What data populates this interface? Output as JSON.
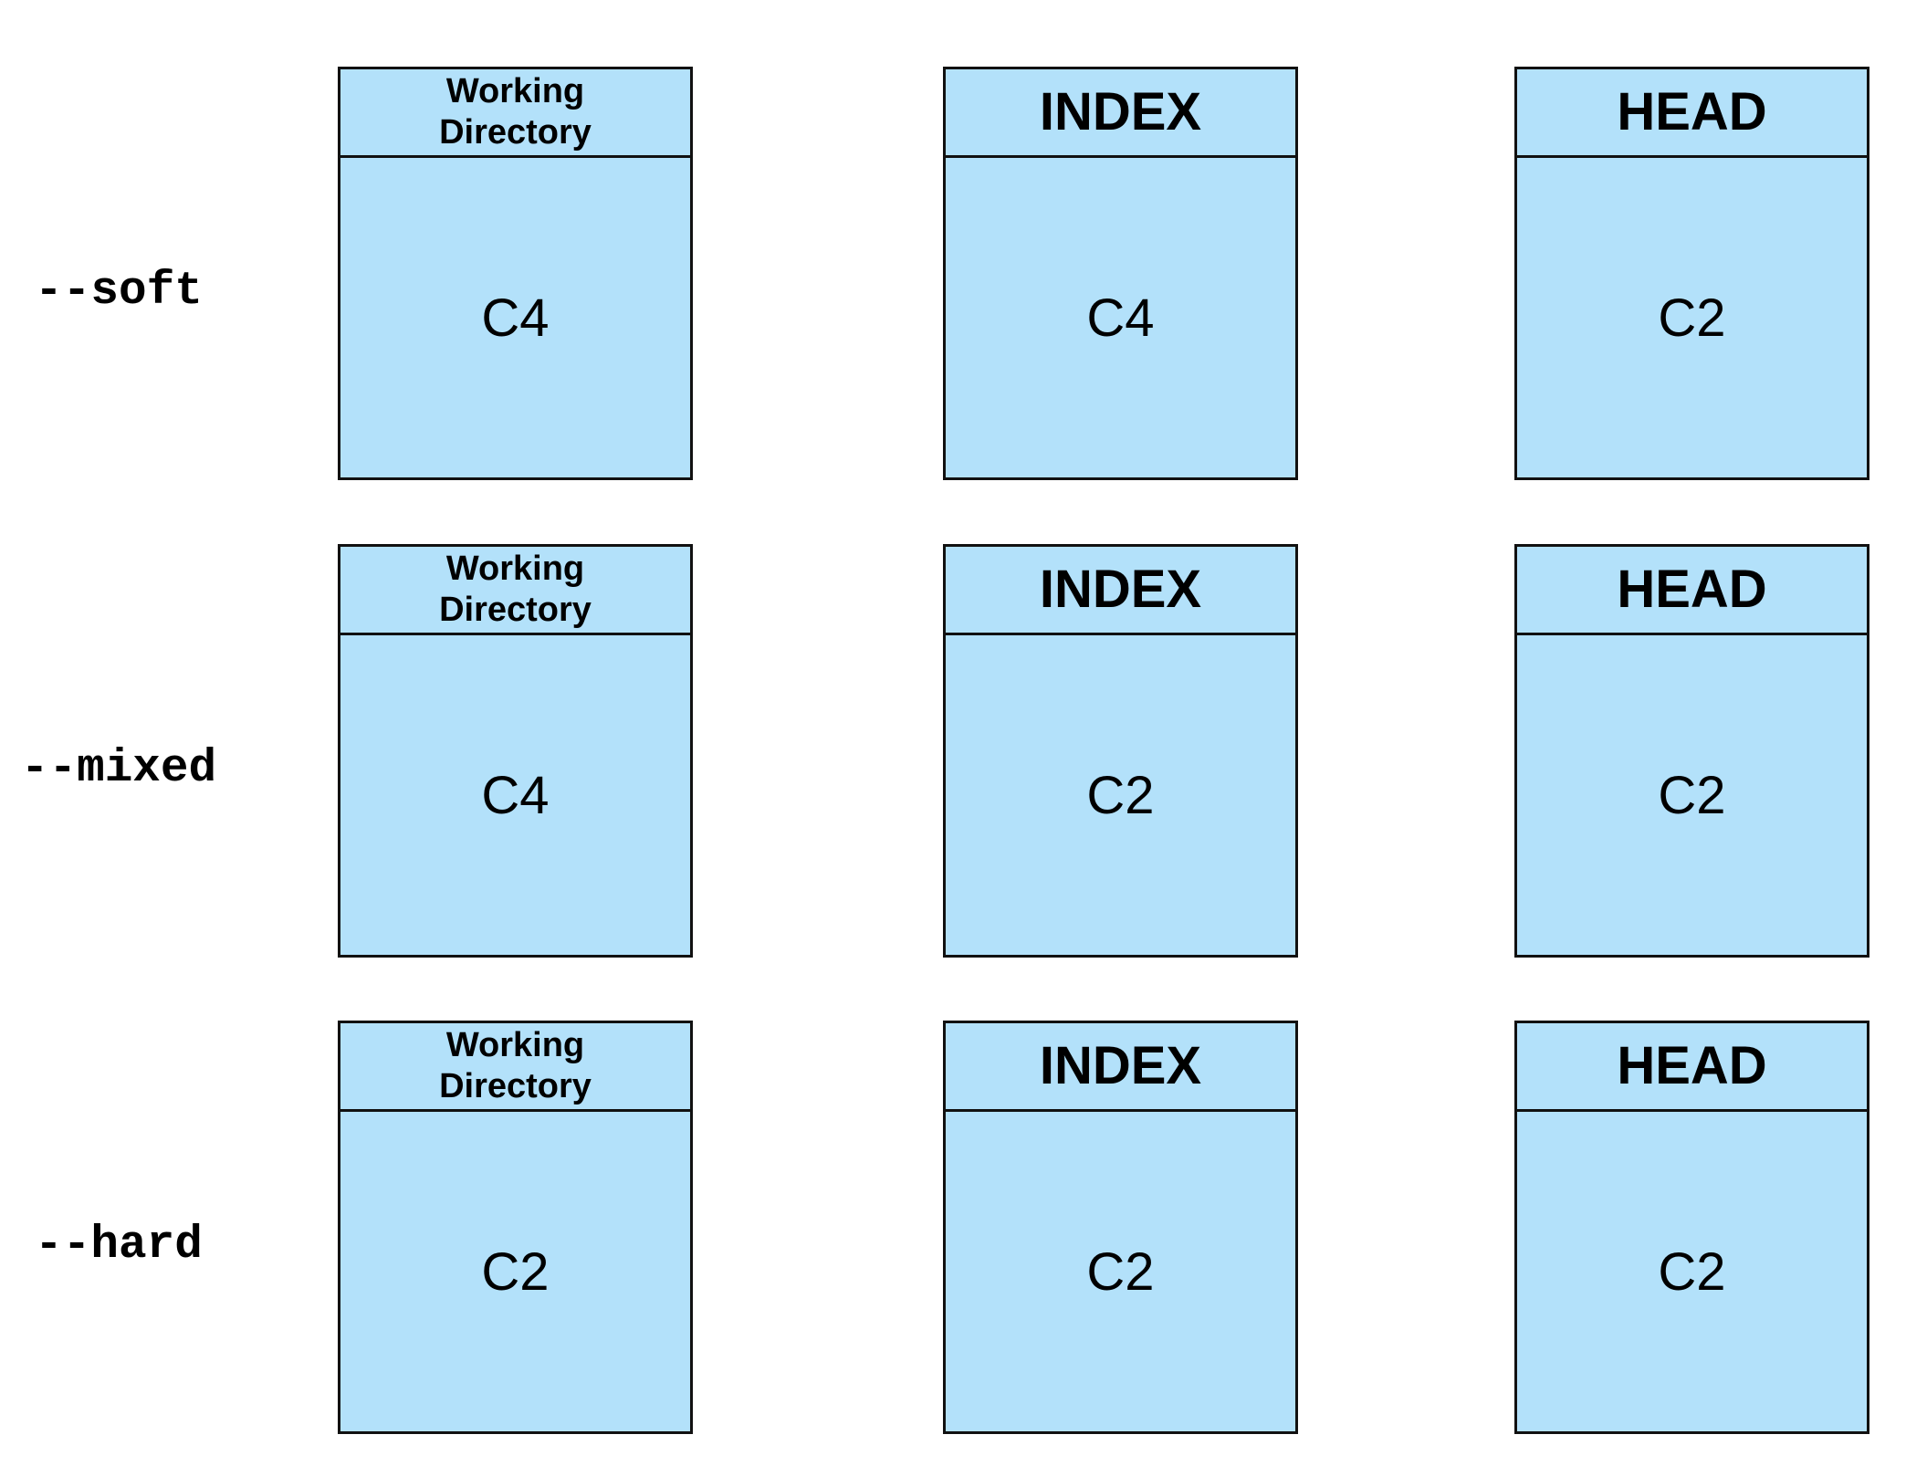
{
  "rows": [
    {
      "label": "--soft",
      "working_directory": {
        "title_line1": "Working",
        "title_line2": "Directory",
        "commit": "C4"
      },
      "index": {
        "title": "INDEX",
        "commit": "C4"
      },
      "head": {
        "title": "HEAD",
        "commit": "C2"
      }
    },
    {
      "label": "--mixed",
      "working_directory": {
        "title_line1": "Working",
        "title_line2": "Directory",
        "commit": "C4"
      },
      "index": {
        "title": "INDEX",
        "commit": "C2"
      },
      "head": {
        "title": "HEAD",
        "commit": "C2"
      }
    },
    {
      "label": "--hard",
      "working_directory": {
        "title_line1": "Working",
        "title_line2": "Directory",
        "commit": "C2"
      },
      "index": {
        "title": "INDEX",
        "commit": "C2"
      },
      "head": {
        "title": "HEAD",
        "commit": "C2"
      }
    }
  ]
}
